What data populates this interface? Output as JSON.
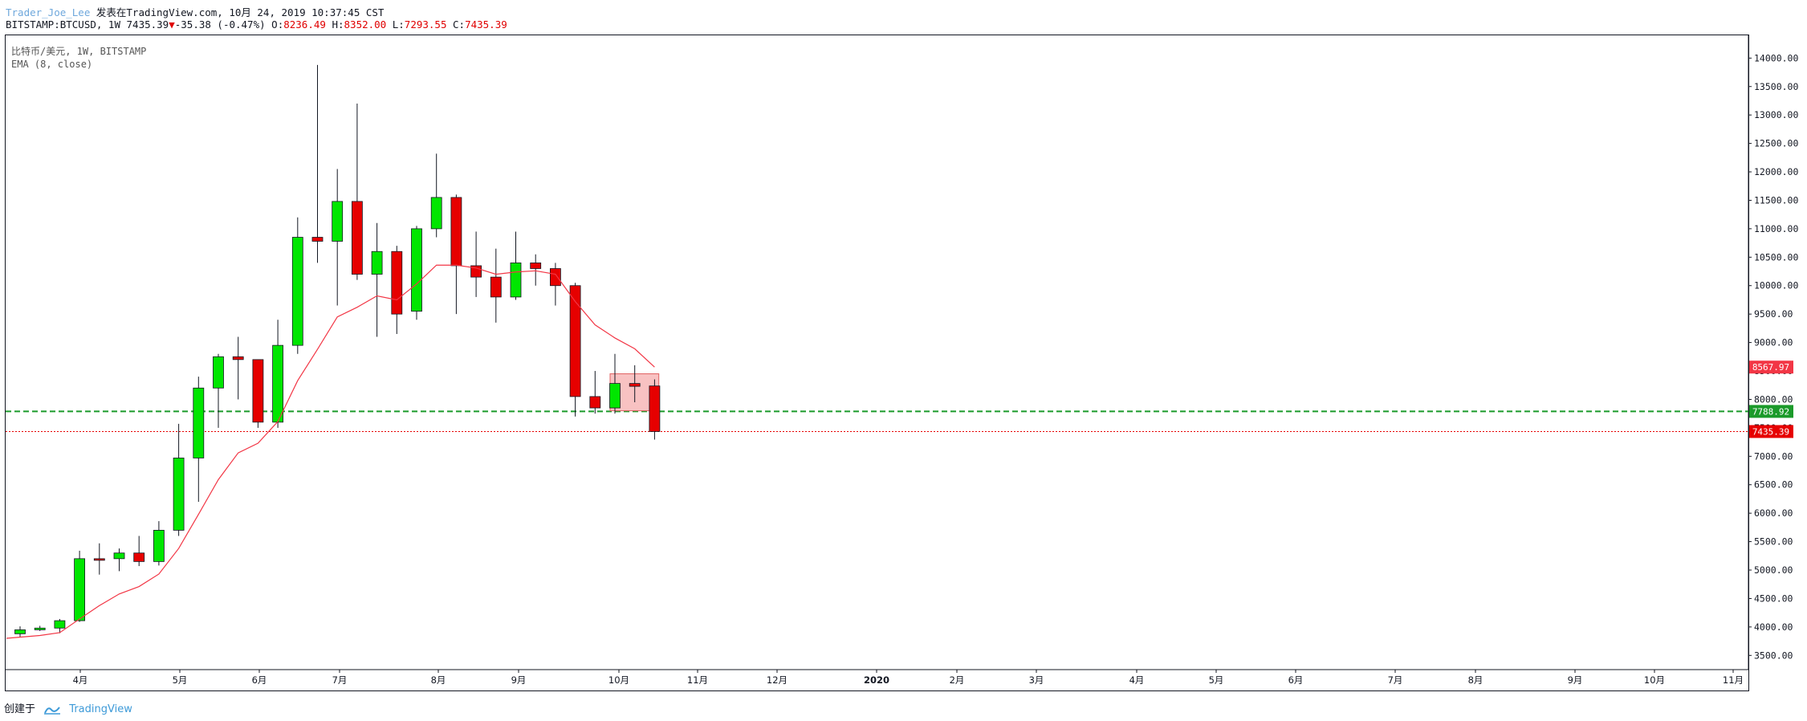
{
  "header": {
    "author": "Trader_Joe_Lee",
    "published": "发表在TradingView.com, 10月 24, 2019 10:37:45 CST",
    "symbol": "BITSTAMP:BTCUSD, 1W",
    "price": "7435.39",
    "change": "-35.38 (-0.47%)",
    "o_label": "O:",
    "o": "8236.49",
    "h_label": "H:",
    "h": "8352.00",
    "l_label": "L:",
    "l": "7293.55",
    "c_label": "C:",
    "c": "7435.39"
  },
  "legend": {
    "title": "比特币/美元, 1W, BITSTAMP",
    "indicator": "EMA (8, close)"
  },
  "footer": {
    "created": "创建于",
    "brand": "TradingView"
  },
  "colors": {
    "up": "#00e600",
    "down": "#e60000",
    "ema": "#f23645",
    "green_line": "#1b9a2a",
    "red_line": "#e60000"
  },
  "chart_data": {
    "type": "candlestick",
    "timeframe": "1W",
    "ylim": [
      3250,
      14400
    ],
    "y_ticks": [
      "3500.00",
      "4000.00",
      "4500.00",
      "5000.00",
      "5500.00",
      "6000.00",
      "6500.00",
      "7000.00",
      "7500.00",
      "8000.00",
      "8500.00",
      "9000.00",
      "9500.00",
      "10000.00",
      "10500.00",
      "11000.00",
      "11500.00",
      "12000.00",
      "12500.00",
      "13000.00",
      "13500.00",
      "14000.00"
    ],
    "x_ticks": [
      "4月",
      "5月",
      "6月",
      "7月",
      "8月",
      "9月",
      "10月",
      "11月",
      "12月",
      "2020",
      "2月",
      "3月",
      "4月",
      "5月",
      "6月",
      "7月",
      "8月",
      "9月",
      "10月",
      "11月"
    ],
    "candles": [
      {
        "o": 3880,
        "h": 4010,
        "l": 3820,
        "c": 3950
      },
      {
        "o": 3950,
        "h": 4020,
        "l": 3930,
        "c": 3980
      },
      {
        "o": 3980,
        "h": 4140,
        "l": 3890,
        "c": 4110
      },
      {
        "o": 4110,
        "h": 5340,
        "l": 4090,
        "c": 5200
      },
      {
        "o": 5200,
        "h": 5470,
        "l": 4920,
        "c": 5180
      },
      {
        "o": 5200,
        "h": 5380,
        "l": 4980,
        "c": 5300
      },
      {
        "o": 5300,
        "h": 5600,
        "l": 5070,
        "c": 5150
      },
      {
        "o": 5150,
        "h": 5860,
        "l": 5080,
        "c": 5700
      },
      {
        "o": 5700,
        "h": 7570,
        "l": 5600,
        "c": 6970
      },
      {
        "o": 6970,
        "h": 8400,
        "l": 6200,
        "c": 8200
      },
      {
        "o": 8200,
        "h": 8800,
        "l": 7500,
        "c": 8750
      },
      {
        "o": 8750,
        "h": 9100,
        "l": 8000,
        "c": 8700
      },
      {
        "o": 8700,
        "h": 8700,
        "l": 7500,
        "c": 7600
      },
      {
        "o": 7600,
        "h": 9400,
        "l": 7500,
        "c": 8950
      },
      {
        "o": 8950,
        "h": 11200,
        "l": 8800,
        "c": 10850
      },
      {
        "o": 10850,
        "h": 13880,
        "l": 10400,
        "c": 10780
      },
      {
        "o": 10780,
        "h": 12050,
        "l": 9650,
        "c": 11480
      },
      {
        "o": 11480,
        "h": 13200,
        "l": 10100,
        "c": 10200
      },
      {
        "o": 10200,
        "h": 11100,
        "l": 9100,
        "c": 10600
      },
      {
        "o": 10600,
        "h": 10700,
        "l": 9150,
        "c": 9500
      },
      {
        "o": 9550,
        "h": 11050,
        "l": 9400,
        "c": 11000
      },
      {
        "o": 11000,
        "h": 12320,
        "l": 10850,
        "c": 11550
      },
      {
        "o": 11550,
        "h": 11600,
        "l": 9500,
        "c": 10350
      },
      {
        "o": 10350,
        "h": 10950,
        "l": 9800,
        "c": 10150
      },
      {
        "o": 10150,
        "h": 10650,
        "l": 9350,
        "c": 9800
      },
      {
        "o": 9800,
        "h": 10950,
        "l": 9750,
        "c": 10400
      },
      {
        "o": 10400,
        "h": 10550,
        "l": 10000,
        "c": 10300
      },
      {
        "o": 10300,
        "h": 10400,
        "l": 9650,
        "c": 10000
      },
      {
        "o": 10000,
        "h": 10050,
        "l": 7700,
        "c": 8050
      },
      {
        "o": 8050,
        "h": 8500,
        "l": 7750,
        "c": 7850
      },
      {
        "o": 7850,
        "h": 8800,
        "l": 7750,
        "c": 8280
      },
      {
        "o": 8280,
        "h": 8600,
        "l": 7950,
        "c": 8230
      },
      {
        "o": 8236.49,
        "h": 8352.0,
        "l": 7293.55,
        "c": 7435.39
      }
    ],
    "ema": [
      3800,
      3850,
      3900,
      4140,
      4375,
      4580,
      4710,
      4930,
      5380,
      5980,
      6590,
      7060,
      7230,
      7610,
      8330,
      8880,
      9450,
      9620,
      9820,
      9750,
      10030,
      10360,
      10360,
      10310,
      10200,
      10240,
      10260,
      10200,
      9720,
      9310,
      9080,
      8890,
      8567.97
    ],
    "levels": [
      {
        "label": "8567.97",
        "value": 8567.97,
        "color": "#f23645"
      },
      {
        "label": "7788.92",
        "value": 7788.92,
        "color": "#1b9a2a",
        "style": "dashed"
      },
      {
        "label": "7435.39",
        "value": 7435.39,
        "color": "#e60000",
        "style": "dotted"
      }
    ],
    "box": {
      "from": 8,
      "to": 8.75,
      "low": 7800,
      "high": 8450
    }
  }
}
